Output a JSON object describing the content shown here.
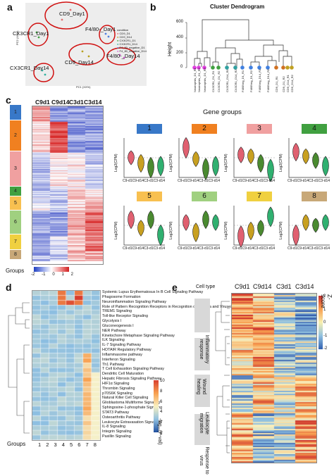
{
  "panels": {
    "a": "a",
    "b": "b",
    "c": "c",
    "d": "d",
    "e": "e"
  },
  "pca": {
    "groups": [
      {
        "name": "CD9_Day1"
      },
      {
        "name": "CX3CR1_Day1"
      },
      {
        "name": "F4/80-_Day1"
      },
      {
        "name": "CD9_Day14"
      },
      {
        "name": "F4/80-_Day14"
      },
      {
        "name": "CX3CR1_Day14"
      }
    ],
    "legend_title": "condition",
    "legend_items": [
      "CD9_D1",
      "CD9_D14",
      "CX3CR1_D1",
      "CX3CR1_D14",
      "F4_80_negative_D1",
      "F4_80_negative_D14"
    ],
    "legend_colors": [
      "#e07070",
      "#b8a020",
      "#40a040",
      "#30b0a0",
      "#5080e0",
      "#d060d0"
    ],
    "x_axis": "PC1 (XX%)",
    "y_axis": "PC2 (XX%)"
  },
  "dendrogram": {
    "title": "Cluster Dendrogram",
    "y_label": "Height",
    "y_ticks": [
      "0",
      "200",
      "400",
      "600"
    ],
    "leaves": [
      "Neutrophils_D1_R1",
      "Neutrophils_D1_R2",
      "Neutrophils_D1_R3",
      "CX3CR1_D1_R1",
      "CX3CR1_D1_R2",
      "CX3CR1_D14_R1",
      "CX3CR1_D14_R2",
      "F480Neg_D1_R1",
      "F480Neg_D1_R2",
      "F480Neg_D14_R1",
      "F480Neg_D14_R2",
      "CD9_D1_R1",
      "CD9_D1_R2",
      "CD9_D14_R1",
      "CD9_D14_R2"
    ],
    "leaf_colors": [
      "#e040e0",
      "#e040e0",
      "#e040e0",
      "#40a040",
      "#40a040",
      "#30a0a0",
      "#30a0a0",
      "#4080e0",
      "#4080e0",
      "#4080e0",
      "#4080e0",
      "#d07020",
      "#d07020",
      "#c0a020",
      "#c0a020"
    ]
  },
  "heatmap_c": {
    "columns": [
      "C9d1",
      "C9d14",
      "C3d1",
      "C3d14"
    ],
    "groups_label": "Groups",
    "groups": [
      "1",
      "2",
      "3",
      "4",
      "5",
      "6",
      "7",
      "8"
    ],
    "group_colors": [
      "#3878c8",
      "#f08020",
      "#f0a0a0",
      "#40a040",
      "#f8c050",
      "#a0d080",
      "#f0d040",
      "#c8a878"
    ],
    "scale_labels": [
      "-2",
      "-1",
      "0",
      "1",
      "2"
    ]
  },
  "gene_groups": {
    "title": "Gene groups",
    "y_label": "Log2(CPM)",
    "x_labels": [
      "C9-d1",
      "C9-d14",
      "C3-d1",
      "C3-d14"
    ],
    "boxes": [
      "1",
      "2",
      "3",
      "4",
      "5",
      "6",
      "7",
      "8"
    ]
  },
  "pathways": {
    "items": [
      "Systemic Lupus Erythematosus In B Cell Signaling Pathway",
      "Phagosome Formation",
      "Neuroinflammation Signaling Pathway",
      "Role of Pattern Recognition Receptors in Recognition of Bacteria and Viruses",
      "TREM1 Signaling",
      "Toll-like Receptor Signaling",
      "Glycolysis I",
      "Gluconeogenesis I",
      "NER Pathway",
      "Kinetochore Metaphase Signaling Pathway",
      "ILK Signaling",
      "IL-7 Signaling Pathway",
      "HOTAIR Regulatory Pathway",
      "Inflammasome pathway",
      "Interferon Signaling",
      "Th1 Pathway",
      "T Cell Exhaustion Signaling Pathway",
      "Dendritic Cell Maturation",
      "Hepatic Fibrosis Signaling Pathway",
      "HIF1α Signaling",
      "Thrombin Signaling",
      "p70S6K Signaling",
      "Natural Killer Cell Signaling",
      "Glioblastoma Multiforme Signaling",
      "Sphingosine-1-phosphate Signaling",
      "STAT3 Pathway",
      "Osteoarthritis Pathway",
      "Leukocyte Extravasation Signaling",
      "IL-8 Signaling",
      "Integrin Signaling",
      "Paxillin Signaling"
    ],
    "groups_label": "Groups",
    "group_ticks": "1 2 3 4 5 6 7 8",
    "scale_labels": [
      "10",
      "8",
      "6",
      "4",
      "2",
      "0"
    ],
    "scale_title": "-log₁₀(P-val)"
  },
  "heatmap_e": {
    "cell_type_label": "Cell type",
    "columns": [
      "C9d1",
      "C9d14",
      "C3d1",
      "C3d14"
    ],
    "categories": [
      "Inflammatory response",
      "Wound healing",
      "Leukocyte migration",
      "Response to virus"
    ],
    "scale_labels": [
      "2",
      "1",
      "0",
      "-1",
      "-2"
    ],
    "scale_title": "Z-score"
  }
}
